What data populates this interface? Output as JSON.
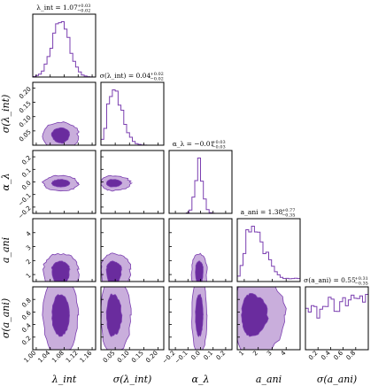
{
  "chart_data": {
    "type": "corner",
    "colors": {
      "light": "#C9AEDC",
      "dark": "#6A2C9E",
      "line": "#7B3FB0",
      "frame": "#000000"
    },
    "parameters": [
      {
        "label": "λ_int",
        "title": "λ_int = 1.07 +0.03 −0.02",
        "title_main": "λ_int = 1.07",
        "title_plus": "+0.03",
        "title_minus": "−0.02",
        "range": [
          0.99,
          1.17
        ],
        "ticks": [
          1.0,
          1.04,
          1.08,
          1.12,
          1.16
        ],
        "tick_labels": [
          "1.00",
          "1.04",
          "1.08",
          "1.12",
          "1.16"
        ],
        "median": 1.07,
        "err_minus": 0.02,
        "err_plus": 0.03,
        "shape": "gauss"
      },
      {
        "label": "σ(λ_int)",
        "title": "σ(λ_int) = 0.04 +0.02 −0.02",
        "title_main": "σ(λ_int) = 0.04",
        "title_plus": "+0.02",
        "title_minus": "−0.02",
        "range": [
          0.0,
          0.22
        ],
        "ticks": [
          0.05,
          0.1,
          0.15,
          0.2
        ],
        "tick_labels": [
          "0.05",
          "0.10",
          "0.15",
          "0.20"
        ],
        "median": 0.04,
        "err_minus": 0.02,
        "err_plus": 0.02,
        "shape": "skew"
      },
      {
        "label": "α_λ",
        "title": "α_λ = −0.01 +0.03 −0.03",
        "title_main": "α_λ = −0.01",
        "title_plus": "+0.03",
        "title_minus": "−0.03",
        "range": [
          -0.25,
          0.25
        ],
        "ticks": [
          -0.2,
          -0.1,
          0.0,
          0.1,
          0.2
        ],
        "tick_labels": [
          "−0.2",
          "−0.1",
          "0.0",
          "0.1",
          "0.2"
        ],
        "median": -0.01,
        "err_minus": 0.03,
        "err_plus": 0.03,
        "shape": "gauss"
      },
      {
        "label": "a_ani",
        "title": "a_ani = 1.38 +0.77 −0.35",
        "title_main": "a_ani = 1.38",
        "title_plus": "+0.77",
        "title_minus": "−0.35",
        "range": [
          0.5,
          5.0
        ],
        "ticks": [
          1,
          2,
          3,
          4
        ],
        "tick_labels": [
          "1",
          "2",
          "3",
          "4"
        ],
        "median": 1.38,
        "err_minus": 0.35,
        "err_plus": 0.77,
        "shape": "longtail"
      },
      {
        "label": "σ(a_ani)",
        "title": "σ(a_ani) = 0.55 +0.31 −0.35",
        "title_main": "σ(a_ani) = 0.55",
        "title_plus": "+0.31",
        "title_minus": "−0.35",
        "range": [
          0.0,
          1.0
        ],
        "ticks": [
          0.2,
          0.4,
          0.6,
          0.8
        ],
        "tick_labels": [
          "0.2",
          "0.4",
          "0.6",
          "0.8"
        ],
        "median": 0.55,
        "err_minus": 0.35,
        "err_plus": 0.31,
        "shape": "flat"
      }
    ]
  }
}
